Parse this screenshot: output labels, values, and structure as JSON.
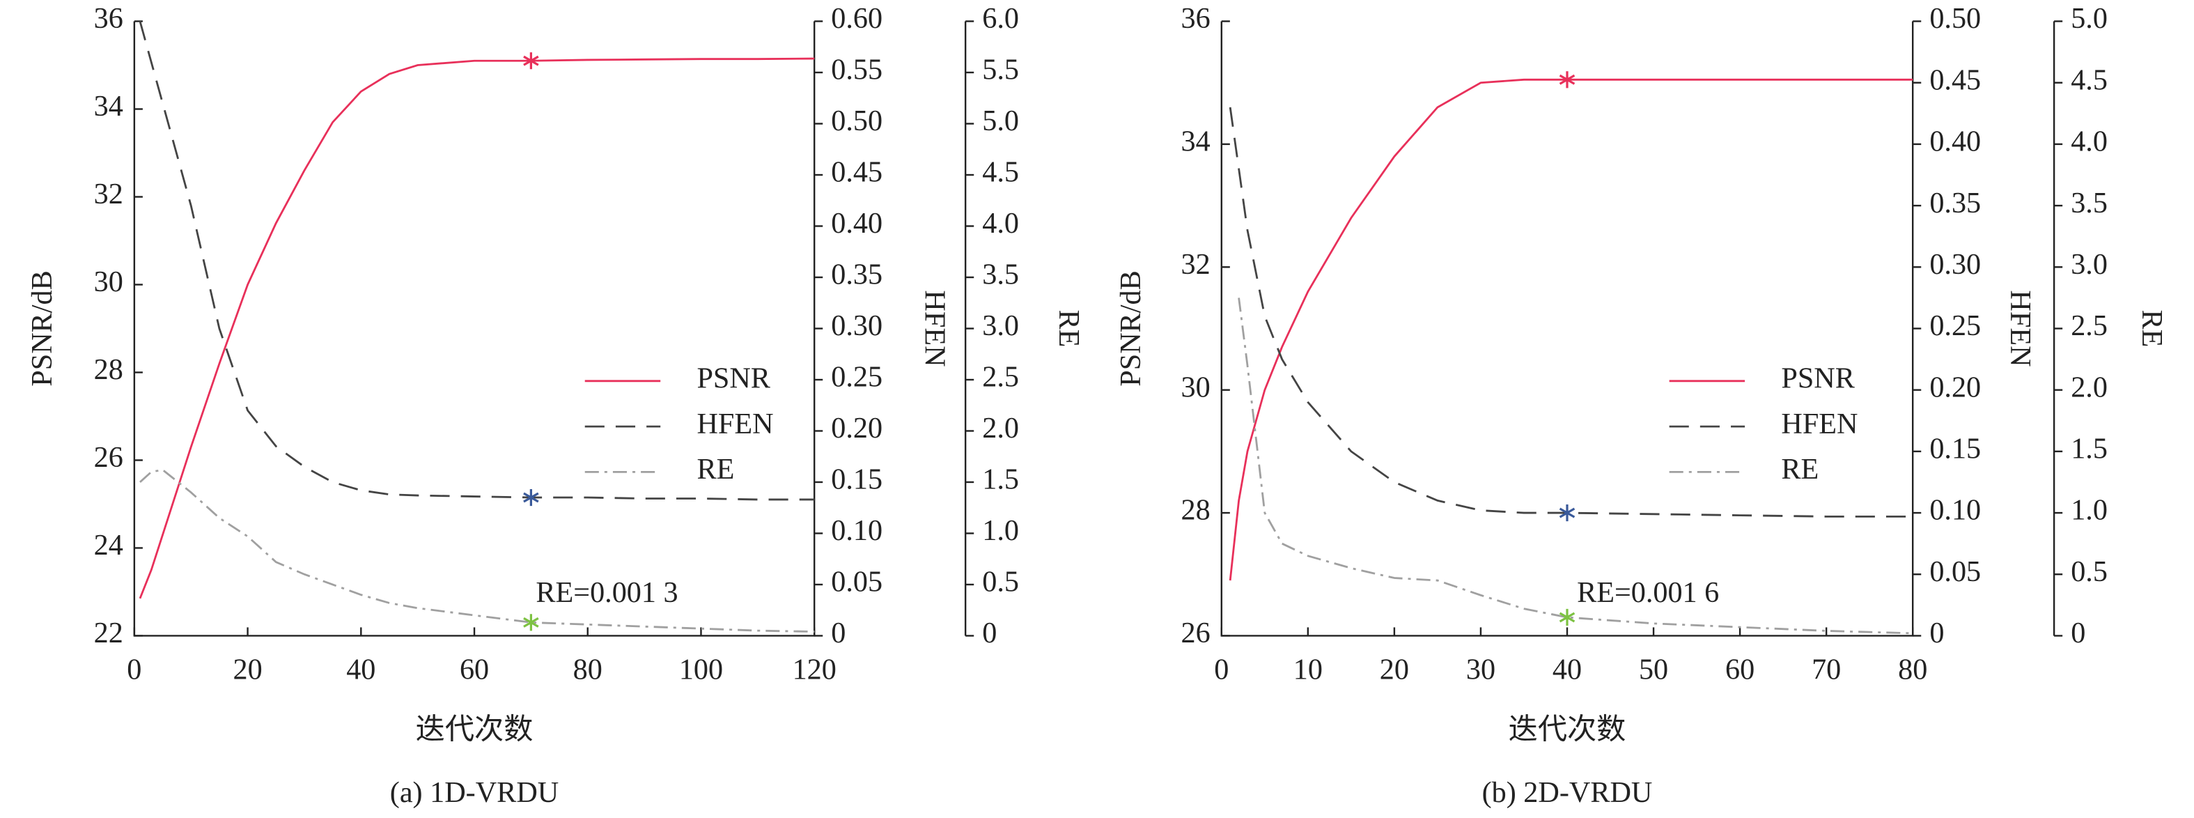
{
  "chart_data": [
    {
      "type": "line",
      "caption": "(a) 1D-VRDU",
      "xlabel": "迭代次数",
      "ylabel": "PSNR/dB",
      "y2label": "HFEN",
      "y3label": "RE",
      "annotation": "RE=0.001 3",
      "marker_x": 70,
      "x": [
        1,
        3,
        5,
        10,
        15,
        20,
        25,
        30,
        35,
        40,
        45,
        50,
        60,
        70,
        80,
        90,
        100,
        110,
        120
      ],
      "series": [
        {
          "name": "PSNR",
          "color": "#e8305a",
          "marker_color": "#e8305a",
          "axis": "y",
          "values": [
            22.85,
            23.5,
            24.3,
            26.3,
            28.2,
            30.0,
            31.4,
            32.6,
            33.7,
            34.4,
            34.8,
            35.0,
            35.1,
            35.1,
            35.12,
            35.13,
            35.14,
            35.14,
            35.15
          ]
        },
        {
          "name": "HFEN",
          "color": "#444444",
          "marker_color": "#3a5a9a",
          "axis": "y2",
          "values": [
            0.6,
            0.56,
            0.52,
            0.42,
            0.3,
            0.22,
            0.185,
            0.165,
            0.15,
            0.142,
            0.138,
            0.137,
            0.136,
            0.135,
            0.135,
            0.134,
            0.134,
            0.133,
            0.133
          ]
        },
        {
          "name": "RE",
          "color": "#a0a0a0",
          "marker_color": "#7dc242",
          "axis": "y3",
          "values": [
            1.5,
            1.6,
            1.62,
            1.4,
            1.15,
            0.97,
            0.72,
            0.6,
            0.5,
            0.4,
            0.32,
            0.27,
            0.2,
            0.13,
            0.11,
            0.09,
            0.07,
            0.05,
            0.04
          ]
        }
      ],
      "xlim": [
        0,
        120
      ],
      "xticks": [
        0,
        20,
        40,
        60,
        80,
        100,
        120
      ],
      "ylim": [
        22,
        36
      ],
      "yticks": [
        22,
        24,
        26,
        28,
        30,
        32,
        34,
        36
      ],
      "y2lim": [
        0,
        0.6
      ],
      "y2ticks": [
        0,
        0.05,
        {
          "value": 0.1,
          "label": "0.10"
        },
        0.15,
        {
          "value": 0.2,
          "label": "0.20"
        },
        0.25,
        {
          "value": 0.3,
          "label": "0.30"
        },
        0.35,
        {
          "value": 0.4,
          "label": "0.40"
        },
        0.45,
        {
          "value": 0.5,
          "label": "0.50"
        },
        0.55,
        {
          "value": 0.6,
          "label": "0.60"
        }
      ],
      "y3lim": [
        0,
        6
      ],
      "y3ticks": [
        0,
        0.5,
        {
          "value": 1,
          "label": "1.0"
        },
        1.5,
        {
          "value": 2,
          "label": "2.0"
        },
        2.5,
        {
          "value": 3,
          "label": "3.0"
        },
        3.5,
        {
          "value": 4,
          "label": "4.0"
        },
        4.5,
        {
          "value": 5,
          "label": "5.0"
        },
        5.5,
        {
          "value": 6,
          "label": "6.0"
        }
      ]
    },
    {
      "type": "line",
      "caption": "(b) 2D-VRDU",
      "xlabel": "迭代次数",
      "ylabel": "PSNR/dB",
      "y2label": "HFEN",
      "y3label": "RE",
      "annotation": "RE=0.001 6",
      "marker_x": 40,
      "x": [
        1,
        2,
        3,
        5,
        7,
        10,
        15,
        20,
        25,
        30,
        35,
        40,
        50,
        60,
        70,
        80
      ],
      "series": [
        {
          "name": "PSNR",
          "color": "#e8305a",
          "marker_color": "#e8305a",
          "axis": "y",
          "values": [
            26.9,
            28.2,
            29.0,
            30.0,
            30.7,
            31.6,
            32.8,
            33.8,
            34.6,
            35.0,
            35.05,
            35.05,
            35.05,
            35.05,
            35.05,
            35.05
          ]
        },
        {
          "name": "HFEN",
          "color": "#444444",
          "marker_color": "#3a5a9a",
          "axis": "y2",
          "values": [
            0.43,
            0.38,
            0.33,
            0.26,
            0.225,
            0.19,
            0.15,
            0.125,
            0.11,
            0.102,
            0.1,
            0.1,
            0.099,
            0.098,
            0.097,
            0.097
          ]
        },
        {
          "name": "RE",
          "color": "#a0a0a0",
          "marker_color": "#7dc242",
          "axis": "y3",
          "values": [
            null,
            2.75,
            2.2,
            1.0,
            0.75,
            0.65,
            0.55,
            0.47,
            0.45,
            0.33,
            0.22,
            0.15,
            0.1,
            0.07,
            0.04,
            0.02
          ]
        }
      ],
      "xlim": [
        0,
        80
      ],
      "xticks": [
        0,
        10,
        20,
        30,
        40,
        50,
        60,
        70,
        80
      ],
      "ylim": [
        26,
        36
      ],
      "yticks": [
        26,
        28,
        30,
        32,
        34,
        36
      ],
      "y2lim": [
        0,
        0.5
      ],
      "y2ticks": [
        0,
        0.05,
        {
          "value": 0.1,
          "label": "0.10"
        },
        0.15,
        {
          "value": 0.2,
          "label": "0.20"
        },
        0.25,
        {
          "value": 0.3,
          "label": "0.30"
        },
        0.35,
        {
          "value": 0.4,
          "label": "0.40"
        },
        0.45,
        {
          "value": 0.5,
          "label": "0.50"
        }
      ],
      "y3lim": [
        0,
        5
      ],
      "y3ticks": [
        0,
        0.5,
        {
          "value": 1,
          "label": "1.0"
        },
        1.5,
        {
          "value": 2,
          "label": "2.0"
        },
        2.5,
        {
          "value": 3,
          "label": "3.0"
        },
        3.5,
        {
          "value": 4,
          "label": "4.0"
        },
        4.5,
        {
          "value": 5,
          "label": "5.0"
        }
      ]
    }
  ]
}
